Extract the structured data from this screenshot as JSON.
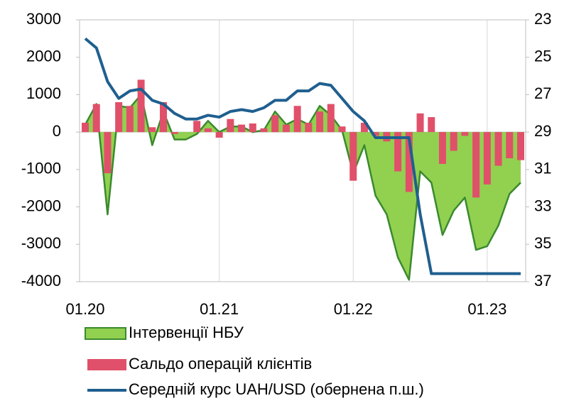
{
  "chart_data": {
    "type": "combo",
    "categories": [
      "01.20",
      null,
      null,
      null,
      null,
      null,
      null,
      null,
      null,
      null,
      null,
      null,
      "01.21",
      null,
      null,
      null,
      null,
      null,
      null,
      null,
      null,
      null,
      null,
      null,
      "01.22",
      null,
      null,
      null,
      null,
      null,
      null,
      null,
      null,
      null,
      null,
      null,
      "01.23",
      null,
      null,
      null
    ],
    "ylim": [
      -4000,
      3000
    ],
    "yticks": [
      3000,
      2000,
      1000,
      0,
      -1000,
      -2000,
      -3000,
      -4000
    ],
    "y2lim": [
      37,
      23
    ],
    "y2ticks": [
      23,
      25,
      27,
      29,
      31,
      33,
      35,
      37
    ],
    "series": [
      {
        "name": "Інтервенції НБУ",
        "type": "area",
        "color": "#92d050",
        "edge_color": "#3a8a2e",
        "values": [
          200,
          750,
          -2200,
          700,
          650,
          1000,
          -350,
          550,
          -200,
          -200,
          -50,
          300,
          0,
          150,
          150,
          0,
          50,
          550,
          200,
          350,
          200,
          700,
          450,
          50,
          -1100,
          -350,
          -1700,
          -2200,
          -3350,
          -3950,
          -1050,
          -1350,
          -2750,
          -2100,
          -1750,
          -3150,
          -3050,
          -2500,
          -1650,
          -1350
        ]
      },
      {
        "name": "Сальдо операцій клієнтів",
        "type": "bar",
        "color": "#e0506a",
        "values": [
          250,
          750,
          -1100,
          800,
          700,
          1400,
          130,
          800,
          -50,
          0,
          300,
          100,
          -150,
          350,
          200,
          230,
          100,
          450,
          200,
          700,
          250,
          550,
          750,
          150,
          -1300,
          250,
          -100,
          -250,
          -1050,
          -1600,
          500,
          400,
          -850,
          -500,
          -100,
          -1750,
          -1400,
          -900,
          -700,
          -750
        ]
      },
      {
        "name": "Середній курс UAH/USD (обернена п.ш.)",
        "type": "line",
        "axis": "y2",
        "color": "#1f5f8f",
        "values": [
          24.0,
          24.5,
          26.3,
          27.2,
          26.8,
          26.7,
          27.3,
          27.5,
          28.0,
          28.3,
          28.3,
          28.1,
          28.2,
          27.9,
          27.8,
          27.9,
          27.7,
          27.3,
          27.3,
          26.8,
          26.8,
          26.4,
          26.5,
          27.2,
          27.9,
          28.4,
          29.3,
          29.3,
          29.3,
          29.3,
          33.4,
          36.57,
          36.57,
          36.57,
          36.57,
          36.57,
          36.57,
          36.57,
          36.57,
          36.57
        ]
      }
    ]
  }
}
